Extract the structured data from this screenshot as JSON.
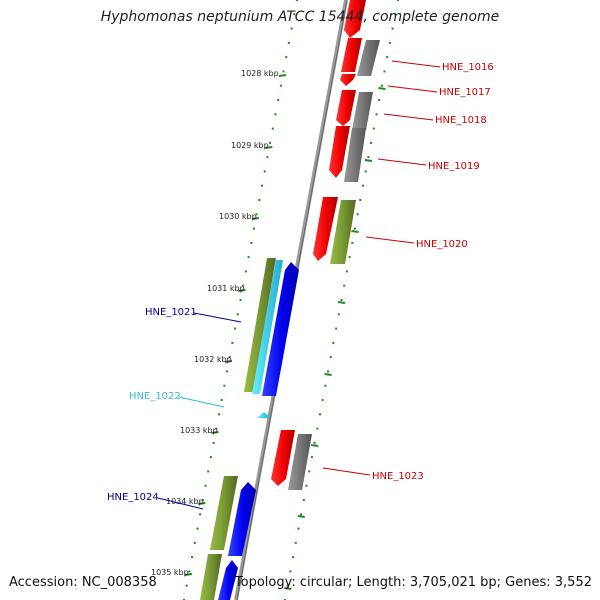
{
  "title": "Hyphomonas neptunium ATCC 15444, complete genome",
  "accession": "Accession: NC_008358",
  "topology": "Topology: circular; Length: 3,705,021 bp; Genes: 3,552",
  "colors": {
    "forward_cds": "#ff0000",
    "forward_pair": "#777777",
    "reverse_cds": "#0000ff",
    "reverse_pair": "#779933",
    "rna": "#33ccdd",
    "backbone": "#888888",
    "tick_dots": "#228822"
  },
  "kbp_labels": [
    "1028 kbp",
    "1029 kbp",
    "1030 kbp",
    "1031 kbp",
    "1032 kbp",
    "1033 kbp",
    "1034 kbp",
    "1035 kbp"
  ],
  "genes": [
    {
      "name": "HNE_1016",
      "strand": "forward",
      "color": "#cc0000"
    },
    {
      "name": "HNE_1017",
      "strand": "forward",
      "color": "#cc0000"
    },
    {
      "name": "HNE_1018",
      "strand": "forward",
      "color": "#cc0000"
    },
    {
      "name": "HNE_1019",
      "strand": "forward",
      "color": "#cc0000"
    },
    {
      "name": "HNE_1020",
      "strand": "forward",
      "color": "#cc0000"
    },
    {
      "name": "HNE_1021",
      "strand": "reverse",
      "color": "#000099"
    },
    {
      "name": "HNE_1022",
      "strand": "reverse",
      "color": "#33bbdd"
    },
    {
      "name": "HNE_1023",
      "strand": "forward",
      "color": "#cc0000"
    },
    {
      "name": "HNE_1024",
      "strand": "reverse",
      "color": "#000099"
    }
  ]
}
